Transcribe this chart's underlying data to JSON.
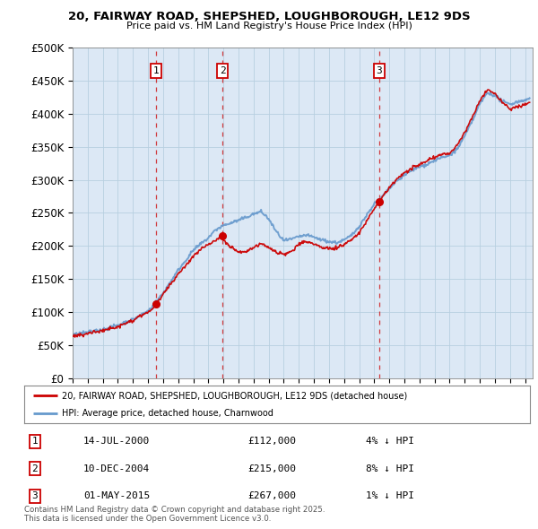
{
  "title": "20, FAIRWAY ROAD, SHEPSHED, LOUGHBOROUGH, LE12 9DS",
  "subtitle": "Price paid vs. HM Land Registry's House Price Index (HPI)",
  "ylabel_ticks": [
    "£0",
    "£50K",
    "£100K",
    "£150K",
    "£200K",
    "£250K",
    "£300K",
    "£350K",
    "£400K",
    "£450K",
    "£500K"
  ],
  "ylim": [
    0,
    500000
  ],
  "xlim_start": 1995.0,
  "xlim_end": 2025.5,
  "sale_years": [
    2000.54,
    2004.94,
    2015.33
  ],
  "sale_prices": [
    112000,
    215000,
    267000
  ],
  "sale_labels": [
    "1",
    "2",
    "3"
  ],
  "legend_line1": "20, FAIRWAY ROAD, SHEPSHED, LOUGHBOROUGH, LE12 9DS (detached house)",
  "legend_line2": "HPI: Average price, detached house, Charnwood",
  "table_rows": [
    [
      "1",
      "14-JUL-2000",
      "£112,000",
      "4% ↓ HPI"
    ],
    [
      "2",
      "10-DEC-2004",
      "£215,000",
      "8% ↓ HPI"
    ],
    [
      "3",
      "01-MAY-2015",
      "£267,000",
      "1% ↓ HPI"
    ]
  ],
  "footer": "Contains HM Land Registry data © Crown copyright and database right 2025.\nThis data is licensed under the Open Government Licence v3.0.",
  "line_color_red": "#cc0000",
  "line_color_blue": "#6699cc",
  "background_color": "#ffffff",
  "chart_bg_color": "#dce8f5",
  "grid_color": "#b8cfe0"
}
